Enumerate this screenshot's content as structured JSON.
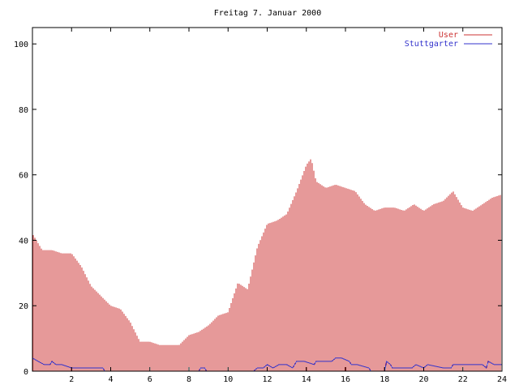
{
  "chart_data": {
    "type": "bar",
    "title": "Freitag 7. Januar 2000",
    "xlabel": "",
    "ylabel": "",
    "xlim": [
      0,
      24
    ],
    "ylim": [
      0,
      105
    ],
    "x_ticks": [
      2,
      4,
      6,
      8,
      10,
      12,
      14,
      16,
      18,
      20,
      22,
      24
    ],
    "x_tick_labels": [
      "2",
      "4",
      "6",
      "8",
      "10",
      "12",
      "14",
      "16",
      "18",
      "20",
      "22",
      "24"
    ],
    "y_ticks": [
      0,
      20,
      40,
      60,
      80,
      100
    ],
    "y_tick_labels": [
      "0",
      "20",
      "40",
      "60",
      "80",
      "100"
    ],
    "grid": false,
    "legend_position": "top-right",
    "legend": [
      {
        "label": "User",
        "color": "#cc3333"
      },
      {
        "label": "Stuttgarter",
        "color": "#3333cc"
      }
    ],
    "series": [
      {
        "name": "User",
        "kind": "impulses",
        "color": "#cc3333",
        "x_points": [
          0,
          0.5,
          1,
          1.5,
          2,
          2.5,
          3,
          3.5,
          4,
          4.5,
          5,
          5.5,
          6,
          6.5,
          7,
          7.5,
          8,
          8.5,
          9,
          9.5,
          10,
          10.5,
          11,
          11.5,
          12,
          12.5,
          13,
          13.5,
          14,
          14.25,
          14.5,
          15,
          15.5,
          16,
          16.5,
          17,
          17.5,
          18,
          18.5,
          19,
          19.5,
          20,
          20.5,
          21,
          21.5,
          22,
          22.5,
          23,
          23.5,
          24
        ],
        "y_points": [
          42,
          37,
          37,
          36,
          36,
          32,
          26,
          23,
          20,
          19,
          15,
          9,
          9,
          8,
          8,
          8,
          11,
          12,
          14,
          17,
          18,
          27,
          25,
          38,
          45,
          46,
          48,
          55,
          63,
          65,
          58,
          56,
          57,
          56,
          55,
          51,
          49,
          50,
          50,
          49,
          51,
          49,
          51,
          52,
          55,
          50,
          49,
          51,
          53,
          54
        ]
      },
      {
        "name": "Stuttgarter",
        "kind": "line",
        "color": "#3333cc",
        "x": [
          0,
          0.3,
          0.6,
          0.9,
          1.0,
          1.2,
          1.5,
          2.0,
          3.6,
          3.7,
          8.5,
          8.6,
          8.8,
          8.9,
          11.3,
          11.5,
          11.8,
          12.0,
          12.3,
          12.6,
          13.0,
          13.3,
          13.5,
          13.9,
          14.4,
          14.5,
          15.3,
          15.5,
          15.8,
          16.2,
          16.3,
          16.6,
          17.2,
          17.3,
          18.0,
          18.1,
          18.3,
          18.4,
          19.4,
          19.6,
          20.0,
          20.2,
          21.0,
          21.4,
          21.5,
          22.0,
          23.0,
          23.2,
          23.3,
          23.6,
          24.0
        ],
        "y": [
          4,
          3,
          2,
          2,
          3,
          2,
          2,
          1,
          1,
          0,
          0,
          1,
          1,
          0,
          0,
          1,
          1,
          2,
          1,
          2,
          2,
          1,
          3,
          3,
          2,
          3,
          3,
          4,
          4,
          3,
          2,
          2,
          1,
          0,
          0,
          3,
          2,
          1,
          1,
          2,
          1,
          2,
          1,
          1,
          2,
          2,
          2,
          1,
          3,
          2,
          2
        ]
      }
    ]
  }
}
